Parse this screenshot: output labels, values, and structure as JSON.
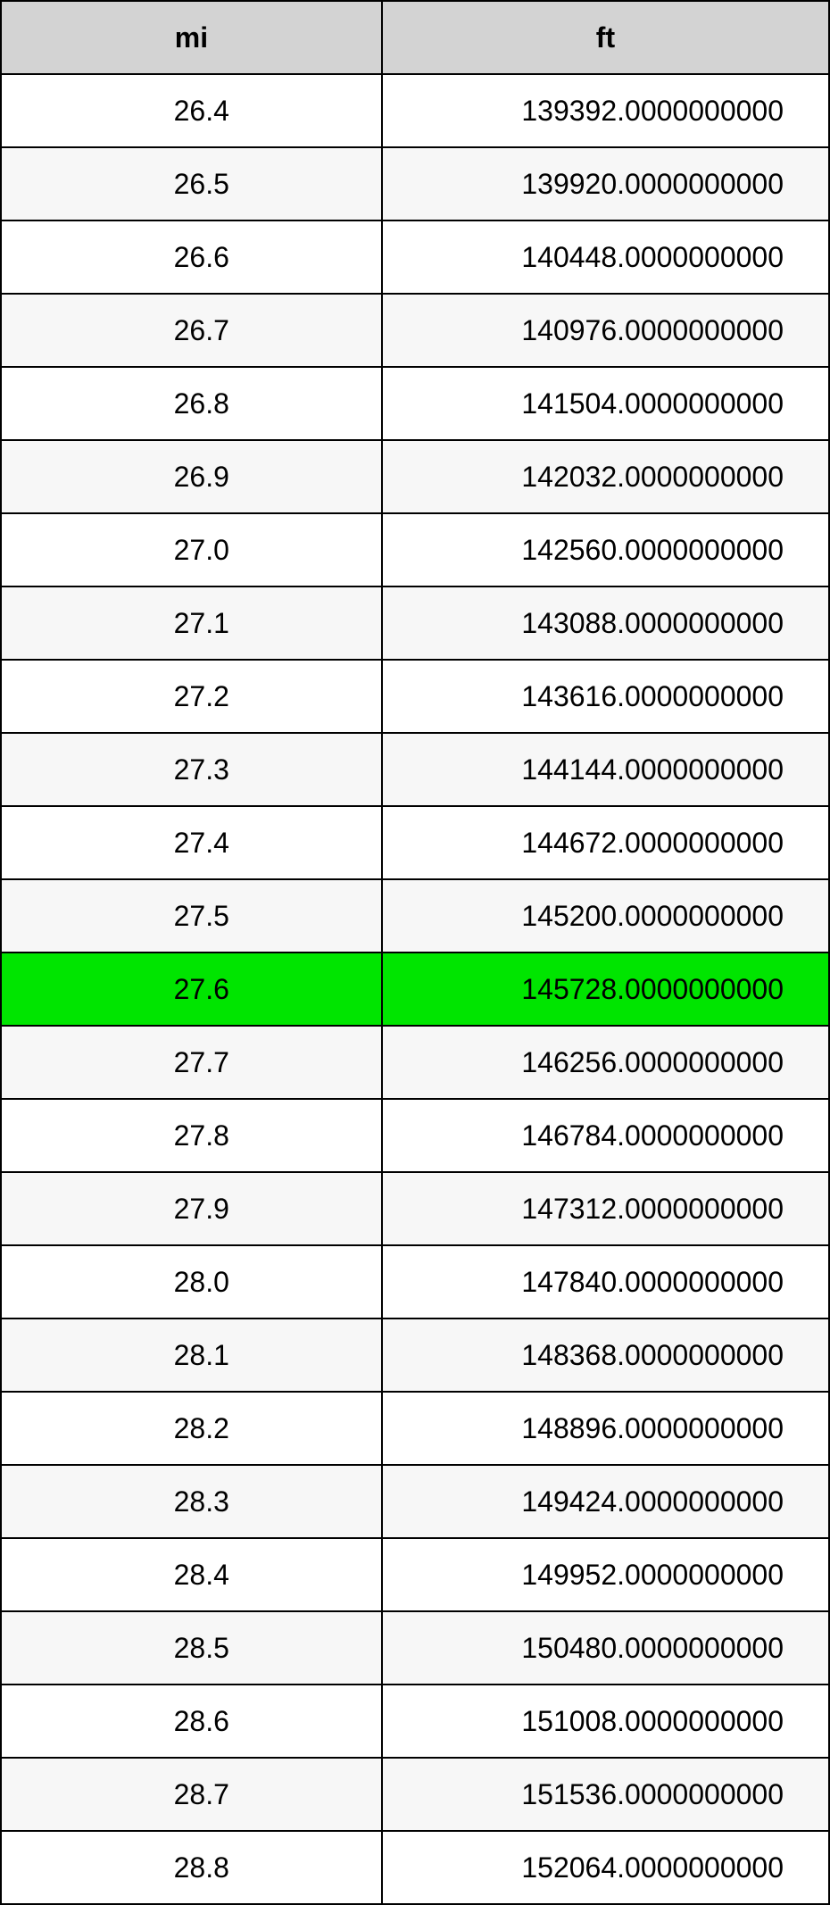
{
  "table": {
    "columns": [
      "mi",
      "ft"
    ],
    "header_bg": "#d3d3d3",
    "row_bg_even": "#ffffff",
    "row_bg_odd": "#f7f7f7",
    "highlight_bg": "#00e500",
    "border_color": "#000000",
    "font_size": 32,
    "highlight_index": 12,
    "rows": [
      [
        "26.4",
        "139392.0000000000"
      ],
      [
        "26.5",
        "139920.0000000000"
      ],
      [
        "26.6",
        "140448.0000000000"
      ],
      [
        "26.7",
        "140976.0000000000"
      ],
      [
        "26.8",
        "141504.0000000000"
      ],
      [
        "26.9",
        "142032.0000000000"
      ],
      [
        "27.0",
        "142560.0000000000"
      ],
      [
        "27.1",
        "143088.0000000000"
      ],
      [
        "27.2",
        "143616.0000000000"
      ],
      [
        "27.3",
        "144144.0000000000"
      ],
      [
        "27.4",
        "144672.0000000000"
      ],
      [
        "27.5",
        "145200.0000000000"
      ],
      [
        "27.6",
        "145728.0000000000"
      ],
      [
        "27.7",
        "146256.0000000000"
      ],
      [
        "27.8",
        "146784.0000000000"
      ],
      [
        "27.9",
        "147312.0000000000"
      ],
      [
        "28.0",
        "147840.0000000000"
      ],
      [
        "28.1",
        "148368.0000000000"
      ],
      [
        "28.2",
        "148896.0000000000"
      ],
      [
        "28.3",
        "149424.0000000000"
      ],
      [
        "28.4",
        "149952.0000000000"
      ],
      [
        "28.5",
        "150480.0000000000"
      ],
      [
        "28.6",
        "151008.0000000000"
      ],
      [
        "28.7",
        "151536.0000000000"
      ],
      [
        "28.8",
        "152064.0000000000"
      ]
    ]
  }
}
